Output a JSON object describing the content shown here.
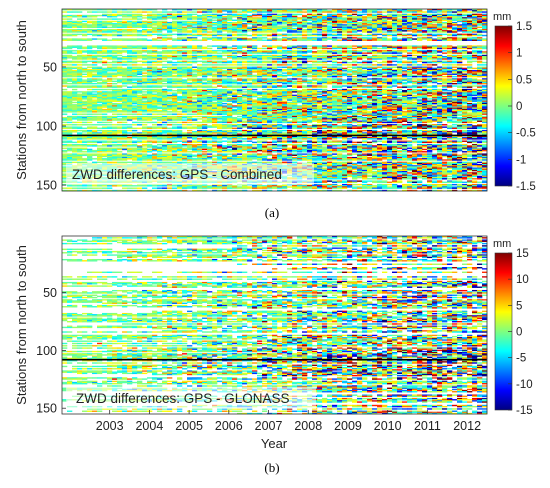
{
  "chart_data": [
    {
      "type": "heatmap",
      "panel_label": "(a)",
      "annotation": "ZWD differences: GPS - Combined",
      "ylabel": "Stations from north to south",
      "xlabel": "",
      "ylim": [
        1,
        155
      ],
      "y_ticks": [
        "50",
        "100",
        "150"
      ],
      "y_tick_values": [
        50,
        100,
        150
      ],
      "x_range_years": [
        2002.3,
        2013.0
      ],
      "colorbar": {
        "unit": "mm",
        "range": [
          -1.5,
          1.5
        ],
        "ticks": [
          "1.5",
          "1",
          "0.5",
          "0",
          "-0.5",
          "-1",
          "-1.5"
        ],
        "tick_values": [
          1.5,
          1,
          0.5,
          0,
          -0.5,
          -1,
          -1.5
        ],
        "colormap": "jet"
      },
      "separator_line_station": 108,
      "grid": false
    },
    {
      "type": "heatmap",
      "panel_label": "(b)",
      "annotation": "ZWD differences: GPS - GLONASS",
      "ylabel": "Stations from north to south",
      "xlabel": "Year",
      "ylim": [
        1,
        155
      ],
      "y_ticks": [
        "50",
        "100",
        "150"
      ],
      "y_tick_values": [
        50,
        100,
        150
      ],
      "x_ticks": [
        "2003",
        "2004",
        "2005",
        "2006",
        "2007",
        "2008",
        "2009",
        "2010",
        "2011",
        "2012"
      ],
      "x_tick_values": [
        2003,
        2004,
        2005,
        2006,
        2007,
        2008,
        2009,
        2010,
        2011,
        2012
      ],
      "x_range_years": [
        2002.3,
        2013.0
      ],
      "colorbar": {
        "unit": "mm",
        "range": [
          -15,
          15
        ],
        "ticks": [
          "15",
          "10",
          "5",
          "0",
          "-5",
          "-10",
          "-15"
        ],
        "tick_values": [
          15,
          10,
          5,
          0,
          -5,
          -10,
          -15
        ],
        "colormap": "jet"
      },
      "separator_line_station": 108,
      "grid": false
    }
  ],
  "colors": {
    "background_value": "#7ee08a",
    "separator_line": "#000000"
  }
}
